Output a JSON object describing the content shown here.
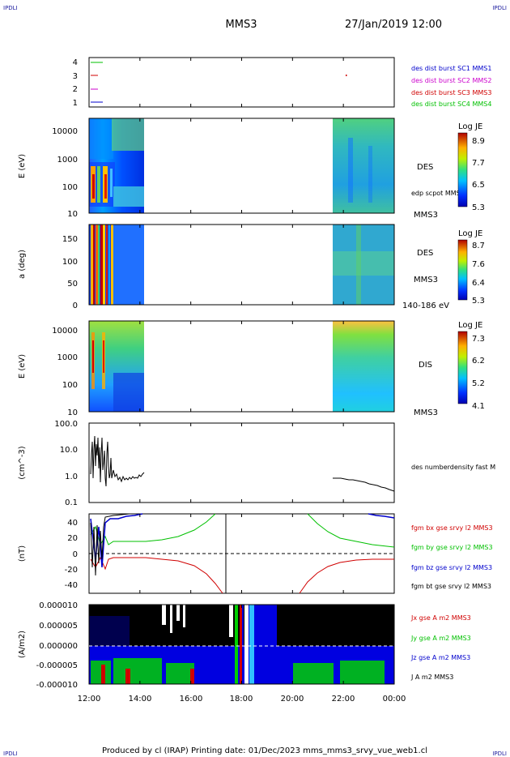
{
  "header": {
    "corner_left_top": "IPDLI",
    "corner_right_top": "IPDLI",
    "corner_left_bottom": "IPDLI",
    "corner_right_bottom": "IPDLI",
    "title": "MMS3",
    "datetime": "27/Jan/2019 12:00"
  },
  "footer": {
    "text": "Produced by cl (IRAP)   Printing date: 01/Dec/2023   mms_mms3_srvy_vue_web1.cl"
  },
  "colors": {
    "green": "#00c000",
    "red": "#d00000",
    "blue": "#0000cc",
    "magenta": "#cc00cc",
    "black": "#000000"
  },
  "chart_data": [
    {
      "type": "scatter",
      "name": "burst",
      "ylim": [
        0.5,
        4.5
      ],
      "yticks": [
        "1",
        "2",
        "3",
        "4"
      ],
      "legend": [
        {
          "label": "des dist burst SC1 MMS1",
          "color": "#0000cc"
        },
        {
          "label": "des dist burst SC2 MMS2",
          "color": "#cc00cc"
        },
        {
          "label": "des dist burst SC3 MMS3",
          "color": "#d00000"
        },
        {
          "label": "des dist burst SC4 MMS4",
          "color": "#00c000"
        }
      ]
    },
    {
      "type": "heatmap",
      "name": "des-energy",
      "ylabel": "E (eV)",
      "scale": "log",
      "ylim": [
        10,
        30000
      ],
      "yticks": [
        "10000",
        "1000",
        "100",
        "10"
      ],
      "label": "DES",
      "extra_label": "edp scpot MMS3",
      "sc_label": "MMS3",
      "colorbar": {
        "title": "Log JE",
        "ticks": [
          "8.9",
          "7.7",
          "6.5",
          "5.3"
        ]
      }
    },
    {
      "type": "heatmap",
      "name": "des-pitch",
      "ylabel": "a (deg)",
      "ylim": [
        0,
        180
      ],
      "yticks": [
        "150",
        "100",
        "50",
        "0"
      ],
      "label": "DES",
      "sc_label": "MMS3",
      "energy_label": "140-186 eV",
      "colorbar": {
        "title": "Log JE",
        "ticks": [
          "8.7",
          "7.6",
          "6.4",
          "5.3"
        ]
      }
    },
    {
      "type": "heatmap",
      "name": "dis-energy",
      "ylabel": "E (eV)",
      "scale": "log",
      "ylim": [
        10,
        30000
      ],
      "yticks": [
        "10000",
        "1000",
        "100",
        "10"
      ],
      "label": "DIS",
      "sc_label": "MMS3",
      "colorbar": {
        "title": "Log JE",
        "ticks": [
          "7.3",
          "6.2",
          "5.2",
          "4.1"
        ]
      }
    },
    {
      "type": "line",
      "name": "density",
      "ylabel": "(cm^-3)",
      "scale": "log",
      "ylim": [
        0.1,
        100
      ],
      "yticks": [
        "100.0",
        "10.0",
        "1.0",
        "0.1"
      ],
      "legend": [
        {
          "label": "des numberdensity fast M",
          "color": "#000000"
        }
      ]
    },
    {
      "type": "line",
      "name": "magnetic-field",
      "ylabel": "(nT)",
      "ylim": [
        -50,
        50
      ],
      "yticks": [
        "40",
        "20",
        "0",
        "-20",
        "-40"
      ],
      "legend": [
        {
          "label": "fgm bx gse srvy l2 MMS3",
          "color": "#d00000"
        },
        {
          "label": "fgm by gse srvy l2 MMS3",
          "color": "#00c000"
        },
        {
          "label": "fgm bz gse srvy l2 MMS3",
          "color": "#0000cc"
        },
        {
          "label": "fgm bt gse srvy l2 MMS3",
          "color": "#000000"
        }
      ]
    },
    {
      "type": "area",
      "name": "current-density",
      "ylabel": "(A/m2)",
      "ylim": [
        -1e-05,
        1e-05
      ],
      "yticks": [
        "0.000010",
        "0.000005",
        "0.000000",
        "-0.000005",
        "-0.000010"
      ],
      "legend": [
        {
          "label": "Jx gse A m2 MMS3",
          "color": "#d00000"
        },
        {
          "label": "Jy gse A m2 MMS3",
          "color": "#00c000"
        },
        {
          "label": "Jz gse A m2 MMS3",
          "color": "#0000cc"
        },
        {
          "label": "J A m2 MMS3",
          "color": "#000000"
        }
      ]
    }
  ],
  "xaxis": {
    "ticks": [
      "12:00",
      "14:00",
      "16:00",
      "18:00",
      "20:00",
      "22:00",
      "00:00"
    ]
  }
}
